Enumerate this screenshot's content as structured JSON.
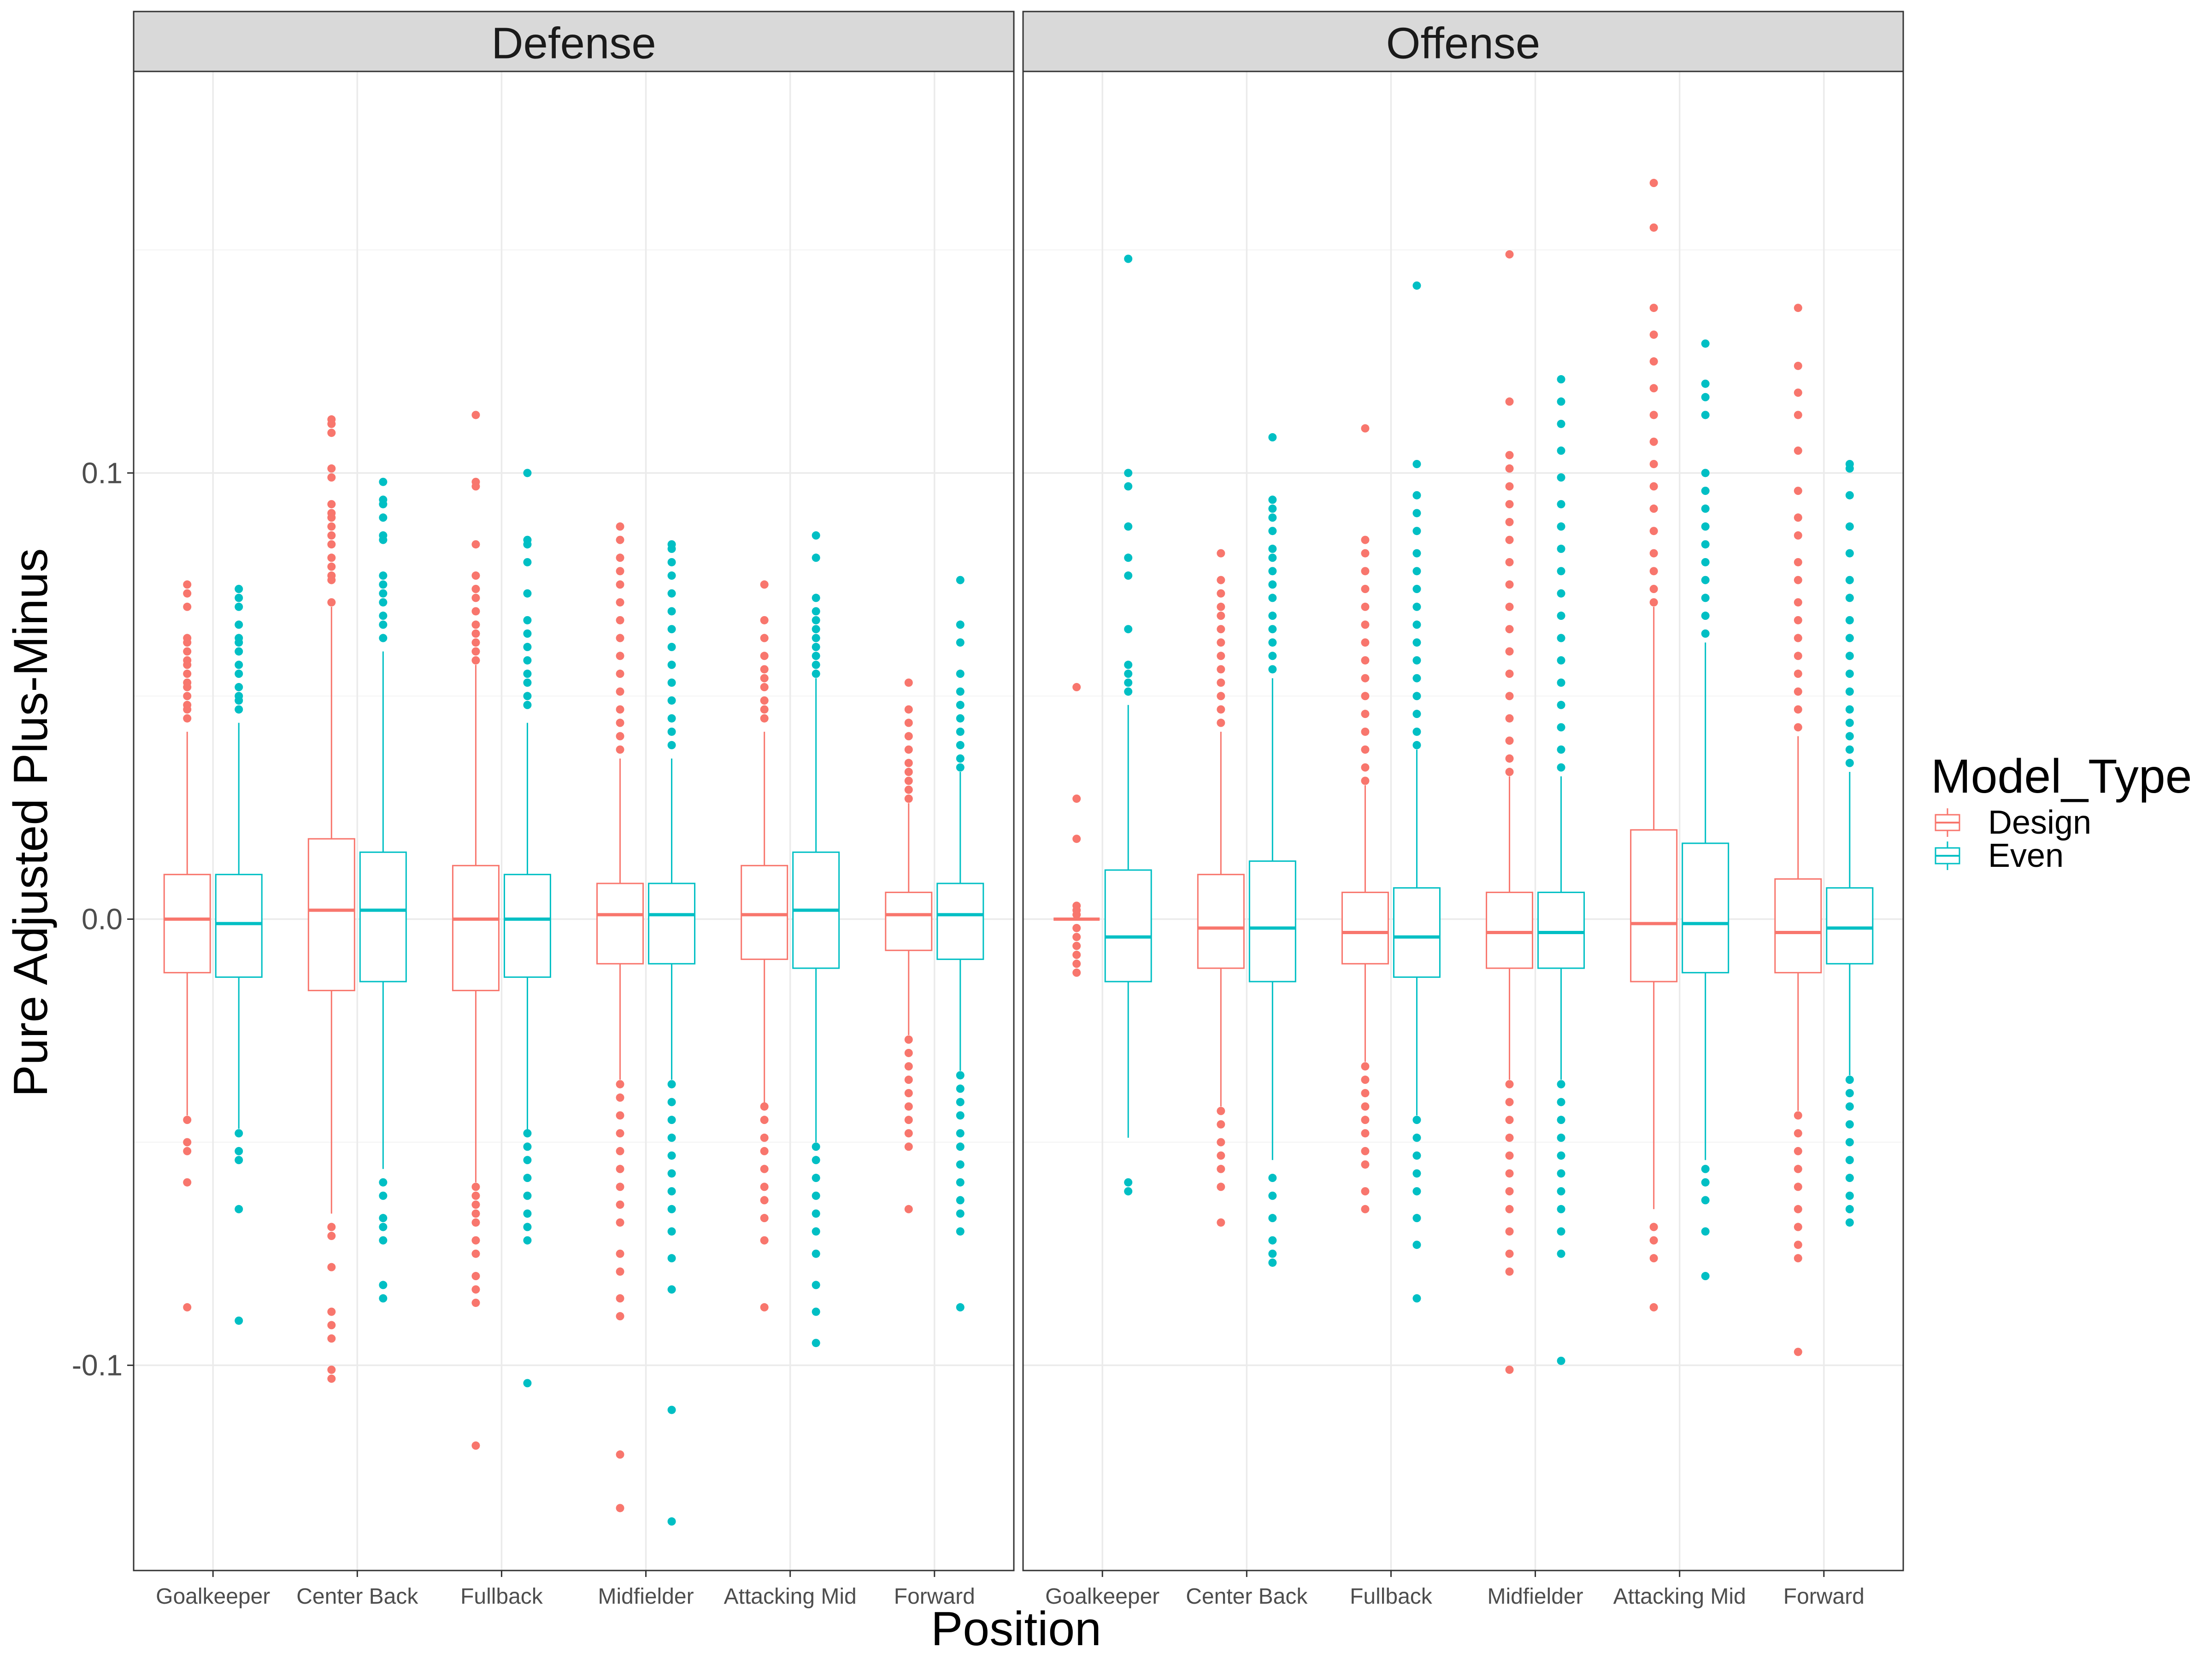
{
  "colors": {
    "Design": "#f8766d",
    "Even": "#00bfc4"
  },
  "chart_data": {
    "type": "boxplot",
    "title": "",
    "xlabel": "Position",
    "ylabel": "Pure Adjusted Plus-Minus",
    "ylim": [
      -0.146,
      0.19
    ],
    "yticks": [
      -0.1,
      0.0,
      0.1
    ],
    "ytick_labels": [
      "-0.1",
      "0.0",
      "0.1"
    ],
    "grid": true,
    "legend": {
      "title": "Model_Type",
      "position": "right",
      "entries": [
        "Design",
        "Even"
      ]
    },
    "categories": [
      "Goalkeeper",
      "Center Back",
      "Fullback",
      "Midfielder",
      "Attacking Mid",
      "Forward"
    ],
    "series": [
      "Design",
      "Even"
    ],
    "panels": [
      {
        "name": "Defense",
        "boxes": [
          {
            "category": "Goalkeeper",
            "series": "Design",
            "q1": -0.012,
            "median": 0.0,
            "q3": 0.01,
            "lower": -0.044,
            "upper": 0.042,
            "outliers": [
              0.075,
              0.073,
              0.07,
              0.063,
              0.062,
              0.06,
              0.058,
              0.057,
              0.055,
              0.053,
              0.052,
              0.05,
              0.048,
              0.047,
              0.045,
              -0.045,
              -0.05,
              -0.052,
              -0.059,
              -0.087
            ]
          },
          {
            "category": "Goalkeeper",
            "series": "Even",
            "q1": -0.013,
            "median": -0.001,
            "q3": 0.01,
            "lower": -0.047,
            "upper": 0.044,
            "outliers": [
              0.074,
              0.072,
              0.07,
              0.066,
              0.063,
              0.062,
              0.06,
              0.057,
              0.055,
              0.052,
              0.05,
              0.049,
              0.047,
              -0.048,
              -0.052,
              -0.054,
              -0.065,
              -0.09
            ]
          },
          {
            "category": "Center Back",
            "series": "Design",
            "q1": -0.016,
            "median": 0.002,
            "q3": 0.018,
            "lower": -0.066,
            "upper": 0.07,
            "outliers": [
              0.112,
              0.111,
              0.109,
              0.101,
              0.099,
              0.093,
              0.091,
              0.09,
              0.088,
              0.086,
              0.084,
              0.081,
              0.079,
              0.077,
              0.076,
              0.071,
              -0.069,
              -0.071,
              -0.078,
              -0.088,
              -0.091,
              -0.094,
              -0.101,
              -0.103
            ]
          },
          {
            "category": "Center Back",
            "series": "Even",
            "q1": -0.014,
            "median": 0.002,
            "q3": 0.015,
            "lower": -0.056,
            "upper": 0.06,
            "outliers": [
              0.098,
              0.094,
              0.093,
              0.09,
              0.086,
              0.085,
              0.077,
              0.075,
              0.073,
              0.071,
              0.068,
              0.066,
              0.063,
              -0.059,
              -0.062,
              -0.067,
              -0.069,
              -0.072,
              -0.082,
              -0.085
            ]
          },
          {
            "category": "Fullback",
            "series": "Design",
            "q1": -0.016,
            "median": 0.0,
            "q3": 0.012,
            "lower": -0.059,
            "upper": 0.057,
            "outliers": [
              0.113,
              0.098,
              0.097,
              0.084,
              0.077,
              0.074,
              0.072,
              0.069,
              0.066,
              0.064,
              0.062,
              0.06,
              0.058,
              -0.06,
              -0.062,
              -0.064,
              -0.066,
              -0.068,
              -0.072,
              -0.075,
              -0.08,
              -0.083,
              -0.086,
              -0.118
            ]
          },
          {
            "category": "Fullback",
            "series": "Even",
            "q1": -0.013,
            "median": 0.0,
            "q3": 0.01,
            "lower": -0.048,
            "upper": 0.044,
            "outliers": [
              0.1,
              0.085,
              0.084,
              0.08,
              0.073,
              0.067,
              0.064,
              0.061,
              0.058,
              0.055,
              0.053,
              0.05,
              0.048,
              -0.048,
              -0.051,
              -0.054,
              -0.058,
              -0.062,
              -0.066,
              -0.069,
              -0.072,
              -0.104
            ]
          },
          {
            "category": "Midfielder",
            "series": "Design",
            "q1": -0.01,
            "median": 0.001,
            "q3": 0.008,
            "lower": -0.036,
            "upper": 0.036,
            "outliers": [
              0.088,
              0.085,
              0.081,
              0.078,
              0.075,
              0.071,
              0.067,
              0.063,
              0.059,
              0.055,
              0.051,
              0.047,
              0.044,
              0.041,
              0.038,
              -0.037,
              -0.04,
              -0.044,
              -0.048,
              -0.052,
              -0.056,
              -0.06,
              -0.064,
              -0.068,
              -0.075,
              -0.079,
              -0.085,
              -0.089,
              -0.12,
              -0.132
            ]
          },
          {
            "category": "Midfielder",
            "series": "Even",
            "q1": -0.01,
            "median": 0.001,
            "q3": 0.008,
            "lower": -0.036,
            "upper": 0.036,
            "outliers": [
              0.084,
              0.083,
              0.08,
              0.077,
              0.073,
              0.069,
              0.065,
              0.061,
              0.057,
              0.053,
              0.049,
              0.045,
              0.042,
              0.039,
              -0.037,
              -0.041,
              -0.045,
              -0.049,
              -0.053,
              -0.057,
              -0.061,
              -0.065,
              -0.07,
              -0.076,
              -0.083,
              -0.11,
              -0.135
            ]
          },
          {
            "category": "Attacking Mid",
            "series": "Design",
            "q1": -0.009,
            "median": 0.001,
            "q3": 0.012,
            "lower": -0.042,
            "upper": 0.042,
            "outliers": [
              0.075,
              0.067,
              0.063,
              0.059,
              0.056,
              0.054,
              0.052,
              0.049,
              0.047,
              0.045,
              -0.042,
              -0.045,
              -0.049,
              -0.052,
              -0.056,
              -0.06,
              -0.063,
              -0.067,
              -0.072,
              -0.087
            ]
          },
          {
            "category": "Attacking Mid",
            "series": "Even",
            "q1": -0.011,
            "median": 0.002,
            "q3": 0.015,
            "lower": -0.05,
            "upper": 0.054,
            "outliers": [
              0.086,
              0.081,
              0.072,
              0.069,
              0.067,
              0.065,
              0.063,
              0.061,
              0.059,
              0.057,
              0.055,
              -0.051,
              -0.054,
              -0.058,
              -0.062,
              -0.066,
              -0.07,
              -0.075,
              -0.082,
              -0.088,
              -0.095
            ]
          },
          {
            "category": "Forward",
            "series": "Design",
            "q1": -0.007,
            "median": 0.001,
            "q3": 0.006,
            "lower": -0.026,
            "upper": 0.026,
            "outliers": [
              0.053,
              0.047,
              0.044,
              0.041,
              0.038,
              0.035,
              0.033,
              0.031,
              0.029,
              0.027,
              -0.027,
              -0.03,
              -0.033,
              -0.036,
              -0.039,
              -0.042,
              -0.045,
              -0.048,
              -0.051,
              -0.065
            ]
          },
          {
            "category": "Forward",
            "series": "Even",
            "q1": -0.009,
            "median": 0.001,
            "q3": 0.008,
            "lower": -0.034,
            "upper": 0.033,
            "outliers": [
              0.076,
              0.066,
              0.062,
              0.055,
              0.051,
              0.048,
              0.045,
              0.042,
              0.039,
              0.036,
              0.034,
              -0.035,
              -0.038,
              -0.041,
              -0.044,
              -0.048,
              -0.051,
              -0.055,
              -0.059,
              -0.063,
              -0.066,
              -0.07,
              -0.087
            ]
          }
        ]
      },
      {
        "name": "Offense",
        "boxes": [
          {
            "category": "Goalkeeper",
            "series": "Design",
            "q1": 0.0,
            "median": 0.0,
            "q3": 0.0,
            "lower": 0.0,
            "upper": 0.0,
            "outliers": [
              0.052,
              0.027,
              0.018,
              0.003,
              0.002,
              0.001,
              -0.002,
              -0.004,
              -0.006,
              -0.008,
              -0.01,
              -0.012
            ]
          },
          {
            "category": "Goalkeeper",
            "series": "Even",
            "q1": -0.014,
            "median": -0.004,
            "q3": 0.011,
            "lower": -0.049,
            "upper": 0.048,
            "outliers": [
              0.148,
              0.1,
              0.097,
              0.088,
              0.081,
              0.077,
              0.065,
              0.057,
              0.055,
              0.053,
              0.051,
              -0.059,
              -0.061
            ]
          },
          {
            "category": "Center Back",
            "series": "Design",
            "q1": -0.011,
            "median": -0.002,
            "q3": 0.01,
            "lower": -0.042,
            "upper": 0.042,
            "outliers": [
              0.082,
              0.076,
              0.073,
              0.07,
              0.068,
              0.065,
              0.062,
              0.059,
              0.056,
              0.053,
              0.05,
              0.047,
              0.044,
              -0.043,
              -0.046,
              -0.05,
              -0.053,
              -0.056,
              -0.06,
              -0.068
            ]
          },
          {
            "category": "Center Back",
            "series": "Even",
            "q1": -0.014,
            "median": -0.002,
            "q3": 0.013,
            "lower": -0.054,
            "upper": 0.054,
            "outliers": [
              0.108,
              0.094,
              0.092,
              0.09,
              0.087,
              0.083,
              0.081,
              0.078,
              0.075,
              0.072,
              0.068,
              0.065,
              0.062,
              0.059,
              0.056,
              -0.058,
              -0.062,
              -0.067,
              -0.072,
              -0.075,
              -0.077
            ]
          },
          {
            "category": "Fullback",
            "series": "Design",
            "q1": -0.01,
            "median": -0.003,
            "q3": 0.006,
            "lower": -0.032,
            "upper": 0.03,
            "outliers": [
              0.11,
              0.085,
              0.082,
              0.078,
              0.074,
              0.07,
              0.066,
              0.062,
              0.058,
              0.054,
              0.05,
              0.046,
              0.042,
              0.038,
              0.034,
              0.031,
              -0.033,
              -0.036,
              -0.039,
              -0.042,
              -0.045,
              -0.048,
              -0.052,
              -0.055,
              -0.061,
              -0.065
            ]
          },
          {
            "category": "Fullback",
            "series": "Even",
            "q1": -0.013,
            "median": -0.004,
            "q3": 0.007,
            "lower": -0.044,
            "upper": 0.038,
            "outliers": [
              0.142,
              0.102,
              0.095,
              0.091,
              0.087,
              0.082,
              0.078,
              0.074,
              0.07,
              0.066,
              0.062,
              0.058,
              0.054,
              0.05,
              0.046,
              0.042,
              0.039,
              -0.045,
              -0.049,
              -0.053,
              -0.057,
              -0.061,
              -0.067,
              -0.073,
              -0.085
            ]
          },
          {
            "category": "Midfielder",
            "series": "Design",
            "q1": -0.011,
            "median": -0.003,
            "q3": 0.006,
            "lower": -0.036,
            "upper": 0.032,
            "outliers": [
              0.149,
              0.116,
              0.104,
              0.101,
              0.097,
              0.093,
              0.089,
              0.085,
              0.08,
              0.075,
              0.07,
              0.065,
              0.06,
              0.055,
              0.05,
              0.045,
              0.04,
              0.036,
              0.033,
              -0.037,
              -0.041,
              -0.045,
              -0.049,
              -0.053,
              -0.057,
              -0.061,
              -0.065,
              -0.07,
              -0.075,
              -0.079,
              -0.101
            ]
          },
          {
            "category": "Midfielder",
            "series": "Even",
            "q1": -0.011,
            "median": -0.003,
            "q3": 0.006,
            "lower": -0.036,
            "upper": 0.032,
            "outliers": [
              0.121,
              0.116,
              0.111,
              0.105,
              0.099,
              0.093,
              0.088,
              0.083,
              0.078,
              0.073,
              0.068,
              0.063,
              0.058,
              0.053,
              0.048,
              0.043,
              0.038,
              0.034,
              -0.037,
              -0.041,
              -0.045,
              -0.049,
              -0.053,
              -0.057,
              -0.061,
              -0.065,
              -0.07,
              -0.075,
              -0.099
            ]
          },
          {
            "category": "Attacking Mid",
            "series": "Design",
            "q1": -0.014,
            "median": -0.001,
            "q3": 0.02,
            "lower": -0.065,
            "upper": 0.07,
            "outliers": [
              0.165,
              0.155,
              0.137,
              0.131,
              0.125,
              0.119,
              0.113,
              0.107,
              0.102,
              0.097,
              0.092,
              0.087,
              0.082,
              0.078,
              0.074,
              0.071,
              -0.069,
              -0.072,
              -0.076,
              -0.087
            ]
          },
          {
            "category": "Attacking Mid",
            "series": "Even",
            "q1": -0.012,
            "median": -0.001,
            "q3": 0.017,
            "lower": -0.054,
            "upper": 0.062,
            "outliers": [
              0.129,
              0.12,
              0.117,
              0.113,
              0.1,
              0.096,
              0.092,
              0.088,
              0.084,
              0.08,
              0.076,
              0.072,
              0.068,
              0.064,
              -0.056,
              -0.059,
              -0.063,
              -0.07,
              -0.08
            ]
          },
          {
            "category": "Forward",
            "series": "Design",
            "q1": -0.012,
            "median": -0.003,
            "q3": 0.009,
            "lower": -0.043,
            "upper": 0.041,
            "outliers": [
              0.137,
              0.124,
              0.118,
              0.113,
              0.105,
              0.096,
              0.09,
              0.086,
              0.08,
              0.076,
              0.071,
              0.067,
              0.063,
              0.059,
              0.055,
              0.051,
              0.047,
              0.043,
              -0.044,
              -0.048,
              -0.052,
              -0.056,
              -0.06,
              -0.065,
              -0.069,
              -0.073,
              -0.076,
              -0.097
            ]
          },
          {
            "category": "Forward",
            "series": "Even",
            "q1": -0.01,
            "median": -0.002,
            "q3": 0.007,
            "lower": -0.035,
            "upper": 0.033,
            "outliers": [
              0.102,
              0.101,
              0.095,
              0.088,
              0.082,
              0.076,
              0.072,
              0.067,
              0.063,
              0.059,
              0.055,
              0.051,
              0.047,
              0.044,
              0.041,
              0.038,
              0.035,
              -0.036,
              -0.039,
              -0.042,
              -0.046,
              -0.05,
              -0.054,
              -0.058,
              -0.062,
              -0.065,
              -0.068
            ]
          }
        ]
      }
    ]
  }
}
